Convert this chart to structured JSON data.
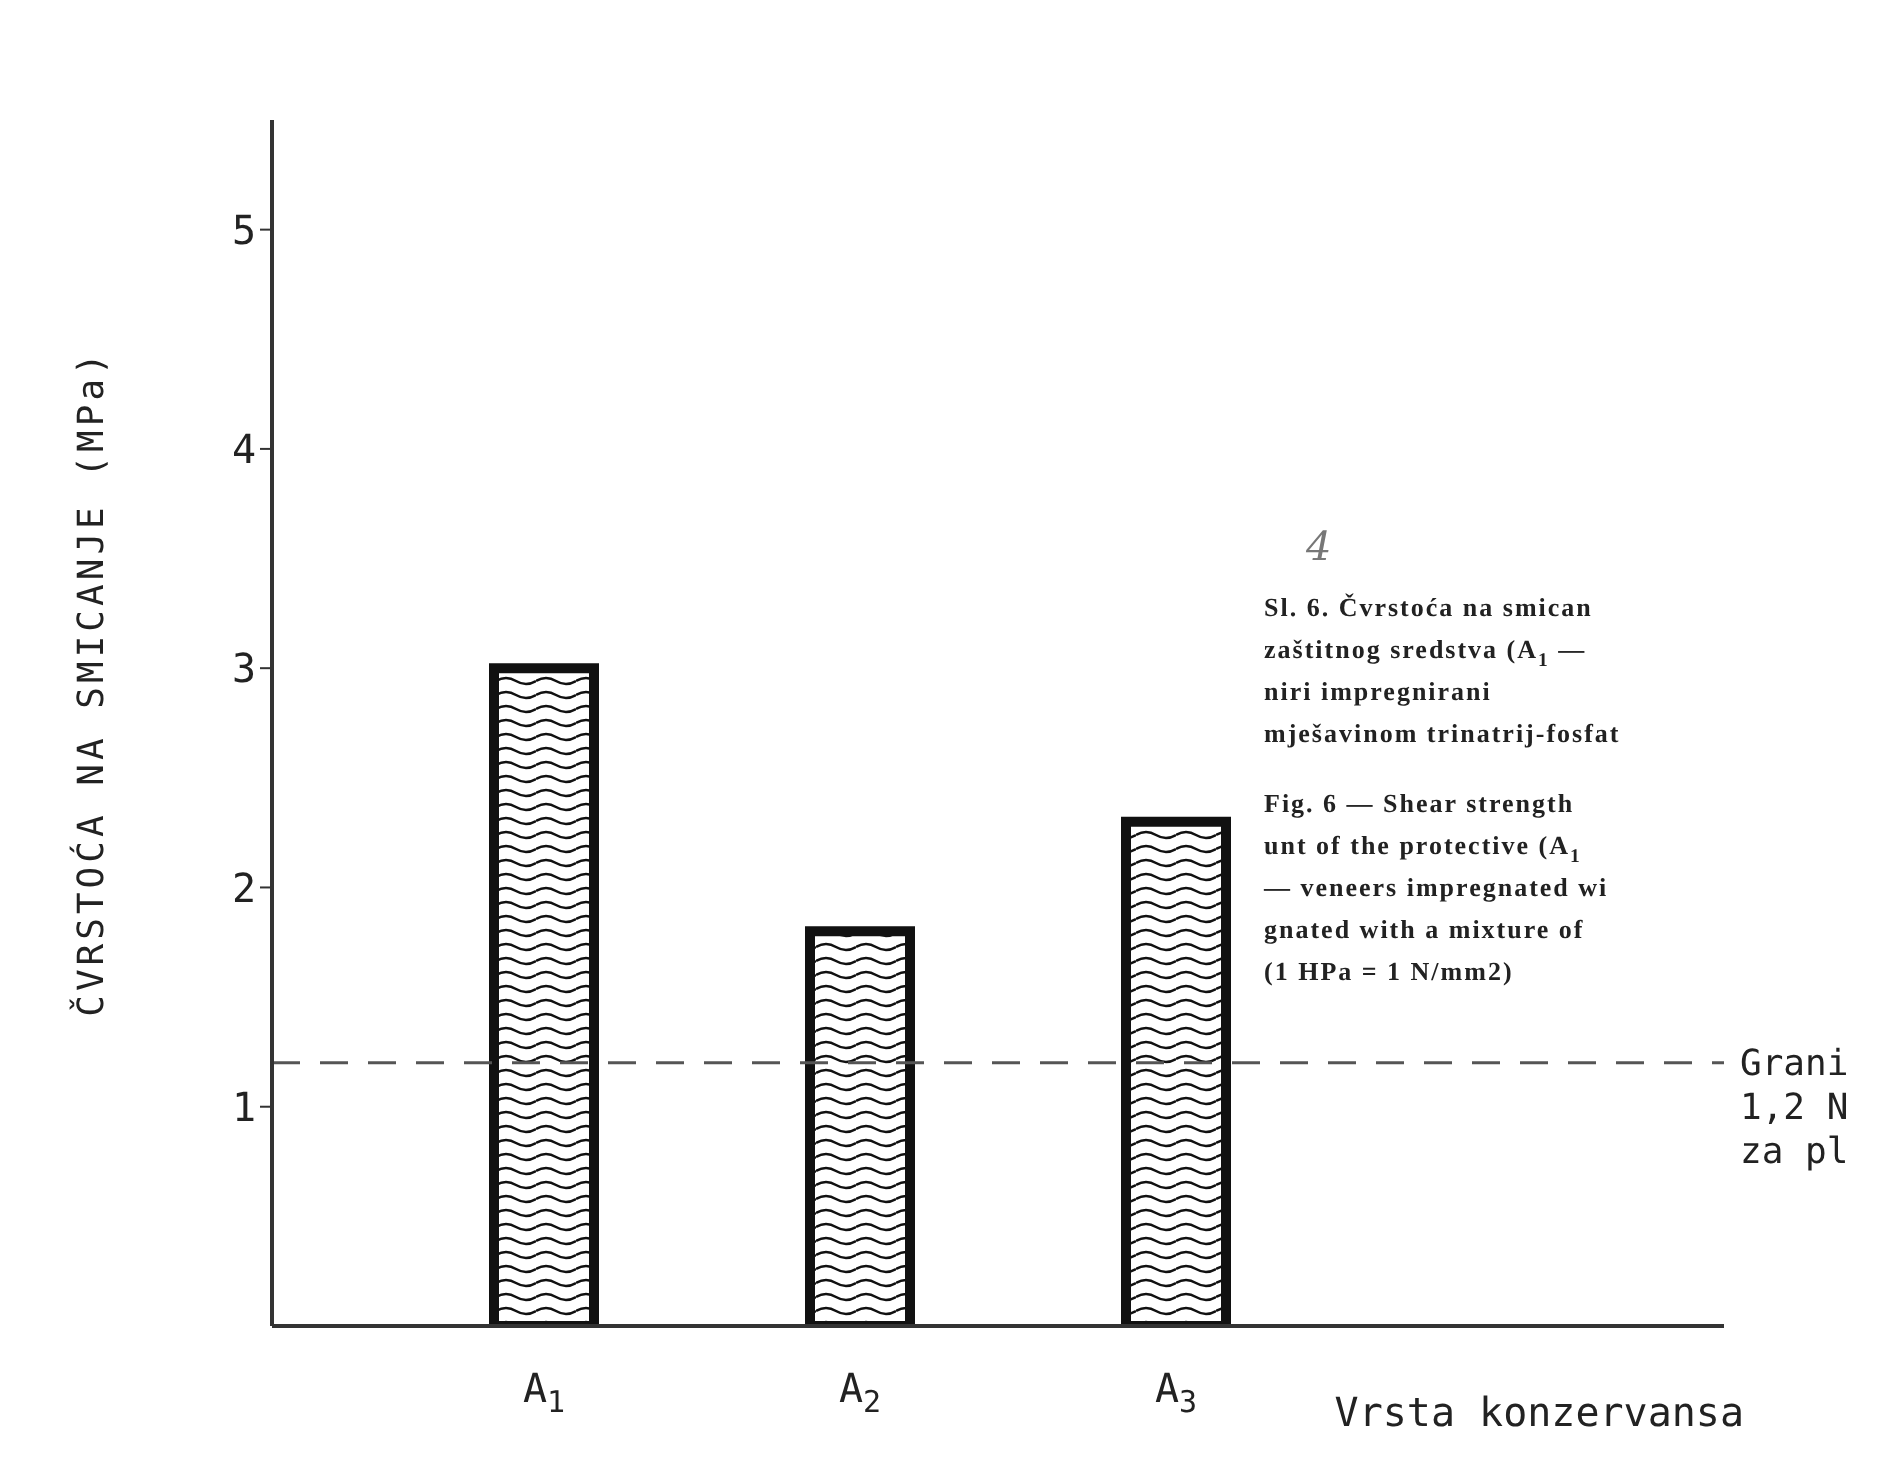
{
  "chart_data": {
    "type": "bar",
    "ylabel": "ČVRSTOĆA NA SMICANJE (MPa)",
    "xlabel": "Vrsta konzervansa",
    "categories": [
      "A$_{1}$",
      "A$_{2}$",
      "A$_{3}$"
    ],
    "values": [
      3.0,
      1.8,
      2.3
    ],
    "color": "#111111",
    "ylim": [
      0,
      5.5
    ],
    "yticks": [
      1,
      2,
      3,
      4,
      5
    ],
    "grid": false,
    "legend": false,
    "ref_lines": [
      {
        "axis": "y",
        "value": 1.2,
        "label": "Grani\n1,2 N\nza pl",
        "color": "#555555",
        "line_style": "dashed"
      }
    ],
    "annotations": [
      "4",
      "Sl. 6. Čvrstoća na smican",
      "zaštitnog sredstva (A$_{1}$ —",
      "niri impregnirani",
      "mješavinom trinatrij-fosfat",
      "Fig. 6 — Shear strength",
      "unt of the protective (A$_{1}$",
      "— veneers impregnated wi",
      "gnated with a mixture of",
      "(1 HPa = 1 N/mm2)"
    ]
  }
}
